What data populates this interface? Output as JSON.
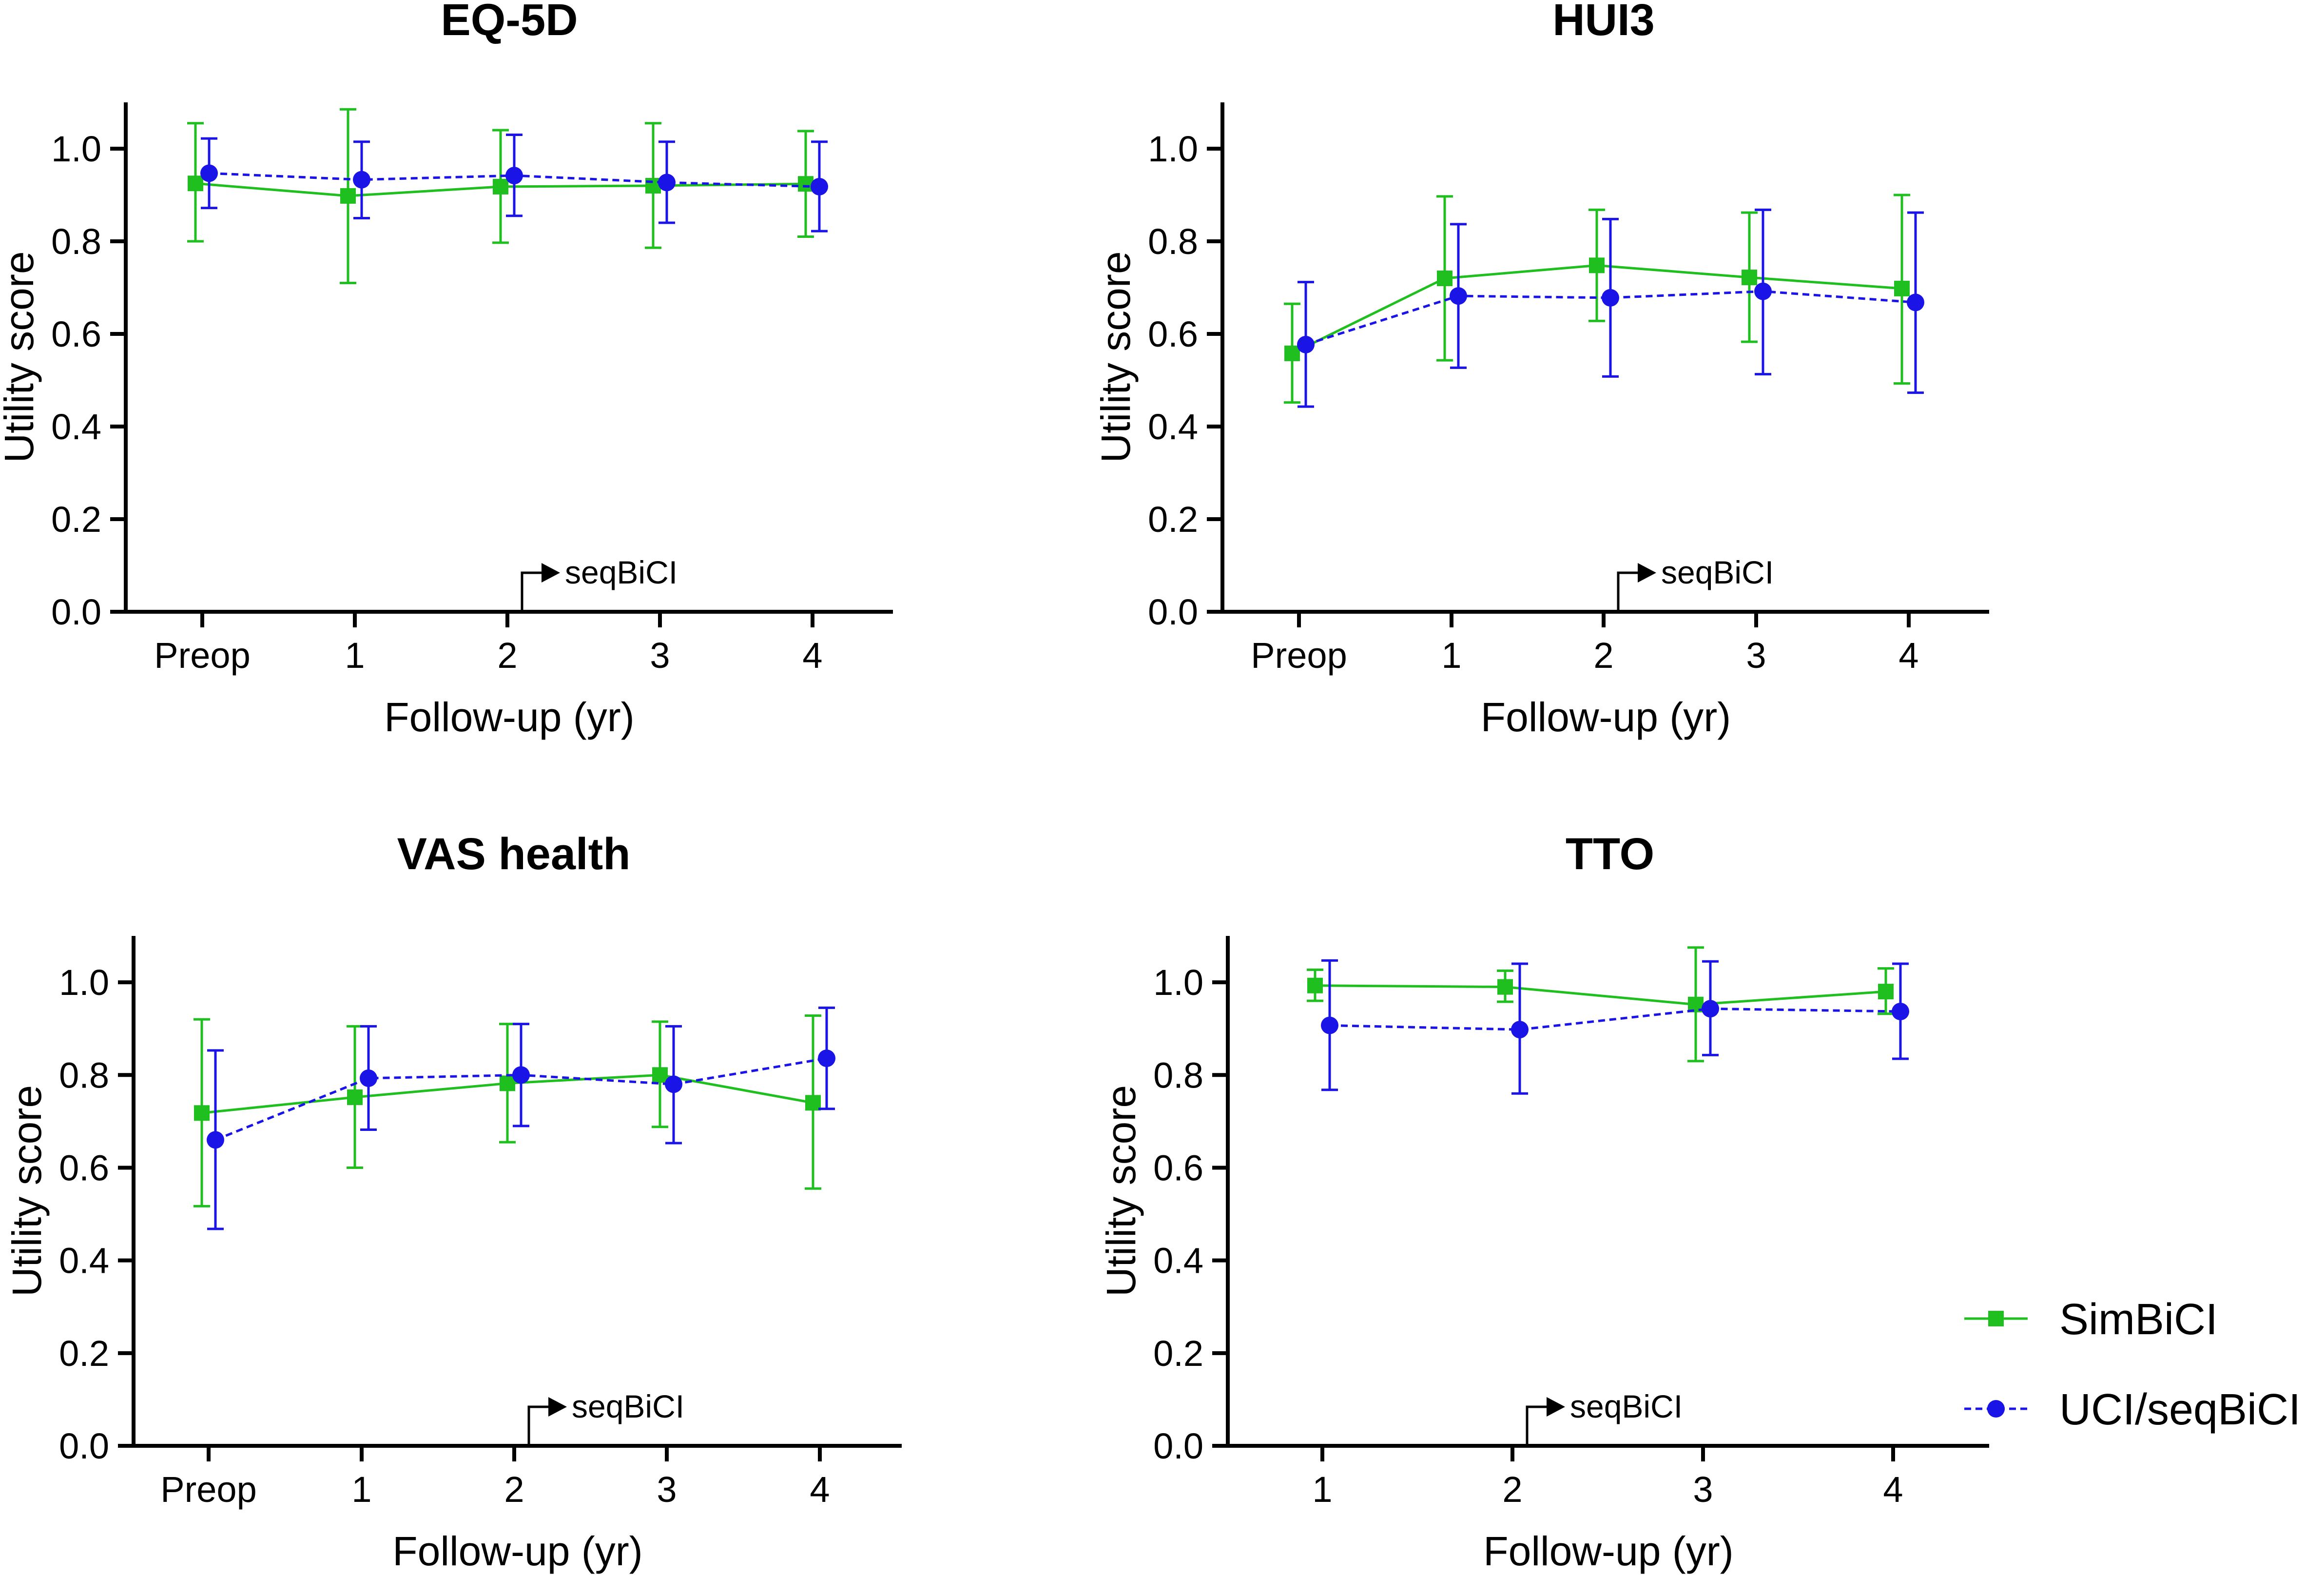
{
  "series_styles": {
    "SimBiCI": {
      "color": "#1fbf1f",
      "marker": "square",
      "dash": false
    },
    "UCI/seqBiCI": {
      "color": "#1a14e6",
      "marker": "circle",
      "dash": true
    }
  },
  "legend": {
    "items": [
      {
        "name": "SimBiCI",
        "label": "SimBiCI"
      },
      {
        "name": "UCI/seqBiCI",
        "label": "UCI/seqBiCI"
      }
    ],
    "placement": "right-of-bottom-right-panel"
  },
  "chart_data": [
    {
      "type": "line",
      "title": "EQ-5D",
      "xlabel": "Follow-up (yr)",
      "ylabel": "Utility score",
      "categories": [
        "Preop",
        "1",
        "2",
        "3",
        "4"
      ],
      "ylim": [
        0,
        1.1
      ],
      "yticks": [
        "0.0",
        "0.2",
        "0.4",
        "0.6",
        "0.8",
        "1.0"
      ],
      "annotation": {
        "text": "seqBiCI",
        "at_category": "2"
      },
      "series": [
        {
          "name": "SimBiCI",
          "values": [
            0.925,
            0.898,
            0.918,
            0.92,
            0.924
          ],
          "err_low": [
            0.8,
            0.71,
            0.797,
            0.786,
            0.81
          ],
          "err_high": [
            1.055,
            1.085,
            1.04,
            1.055,
            1.038
          ]
        },
        {
          "name": "UCI/seqBiCI",
          "values": [
            0.947,
            0.933,
            0.942,
            0.927,
            0.918
          ],
          "err_low": [
            0.872,
            0.85,
            0.855,
            0.84,
            0.822
          ],
          "err_high": [
            1.022,
            1.015,
            1.03,
            1.015,
            1.015
          ]
        }
      ]
    },
    {
      "type": "line",
      "title": "HUI3",
      "xlabel": "Follow-up (yr)",
      "ylabel": "Utility score",
      "categories": [
        "Preop",
        "1",
        "2",
        "3",
        "4"
      ],
      "ylim": [
        0,
        1.1
      ],
      "yticks": [
        "0.0",
        "0.2",
        "0.4",
        "0.6",
        "0.8",
        "1.0"
      ],
      "annotation": {
        "text": "seqBiCI",
        "at_category": "2"
      },
      "series": [
        {
          "name": "SimBiCI",
          "values": [
            0.558,
            0.72,
            0.748,
            0.722,
            0.698
          ],
          "err_low": [
            0.452,
            0.543,
            0.628,
            0.583,
            0.493
          ],
          "err_high": [
            0.665,
            0.897,
            0.868,
            0.862,
            0.9
          ]
        },
        {
          "name": "UCI/seqBiCI",
          "values": [
            0.577,
            0.682,
            0.678,
            0.692,
            0.668
          ],
          "err_low": [
            0.443,
            0.527,
            0.508,
            0.513,
            0.473
          ],
          "err_high": [
            0.712,
            0.837,
            0.848,
            0.868,
            0.862
          ]
        }
      ]
    },
    {
      "type": "line",
      "title": "VAS health",
      "xlabel": "Follow-up (yr)",
      "ylabel": "Utility score",
      "categories": [
        "Preop",
        "1",
        "2",
        "3",
        "4"
      ],
      "ylim": [
        0,
        1.1
      ],
      "yticks": [
        "0.0",
        "0.2",
        "0.4",
        "0.6",
        "0.8",
        "1.0"
      ],
      "annotation": {
        "text": "seqBiCI",
        "at_category": "2"
      },
      "series": [
        {
          "name": "SimBiCI",
          "values": [
            0.718,
            0.752,
            0.782,
            0.8,
            0.74
          ],
          "err_low": [
            0.517,
            0.6,
            0.655,
            0.688,
            0.555
          ],
          "err_high": [
            0.92,
            0.905,
            0.91,
            0.915,
            0.928
          ]
        },
        {
          "name": "UCI/seqBiCI",
          "values": [
            0.66,
            0.793,
            0.8,
            0.78,
            0.836
          ],
          "err_low": [
            0.468,
            0.682,
            0.69,
            0.653,
            0.727
          ],
          "err_high": [
            0.853,
            0.905,
            0.91,
            0.905,
            0.945
          ]
        }
      ]
    },
    {
      "type": "line",
      "title": "TTO",
      "xlabel": "Follow-up (yr)",
      "ylabel": "Utility score",
      "categories": [
        "1",
        "2",
        "3",
        "4"
      ],
      "ylim": [
        0,
        1.1
      ],
      "yticks": [
        "0.0",
        "0.2",
        "0.4",
        "0.6",
        "0.8",
        "1.0"
      ],
      "annotation": {
        "text": "seqBiCI",
        "at_category": "2"
      },
      "series": [
        {
          "name": "SimBiCI",
          "values": [
            0.993,
            0.99,
            0.952,
            0.98
          ],
          "err_low": [
            0.96,
            0.958,
            0.83,
            0.932
          ],
          "err_high": [
            1.027,
            1.025,
            1.075,
            1.03
          ]
        },
        {
          "name": "UCI/seqBiCI",
          "values": [
            0.907,
            0.898,
            0.943,
            0.937
          ],
          "err_low": [
            0.768,
            0.76,
            0.843,
            0.835
          ],
          "err_high": [
            1.047,
            1.04,
            1.045,
            1.04
          ]
        }
      ]
    }
  ]
}
